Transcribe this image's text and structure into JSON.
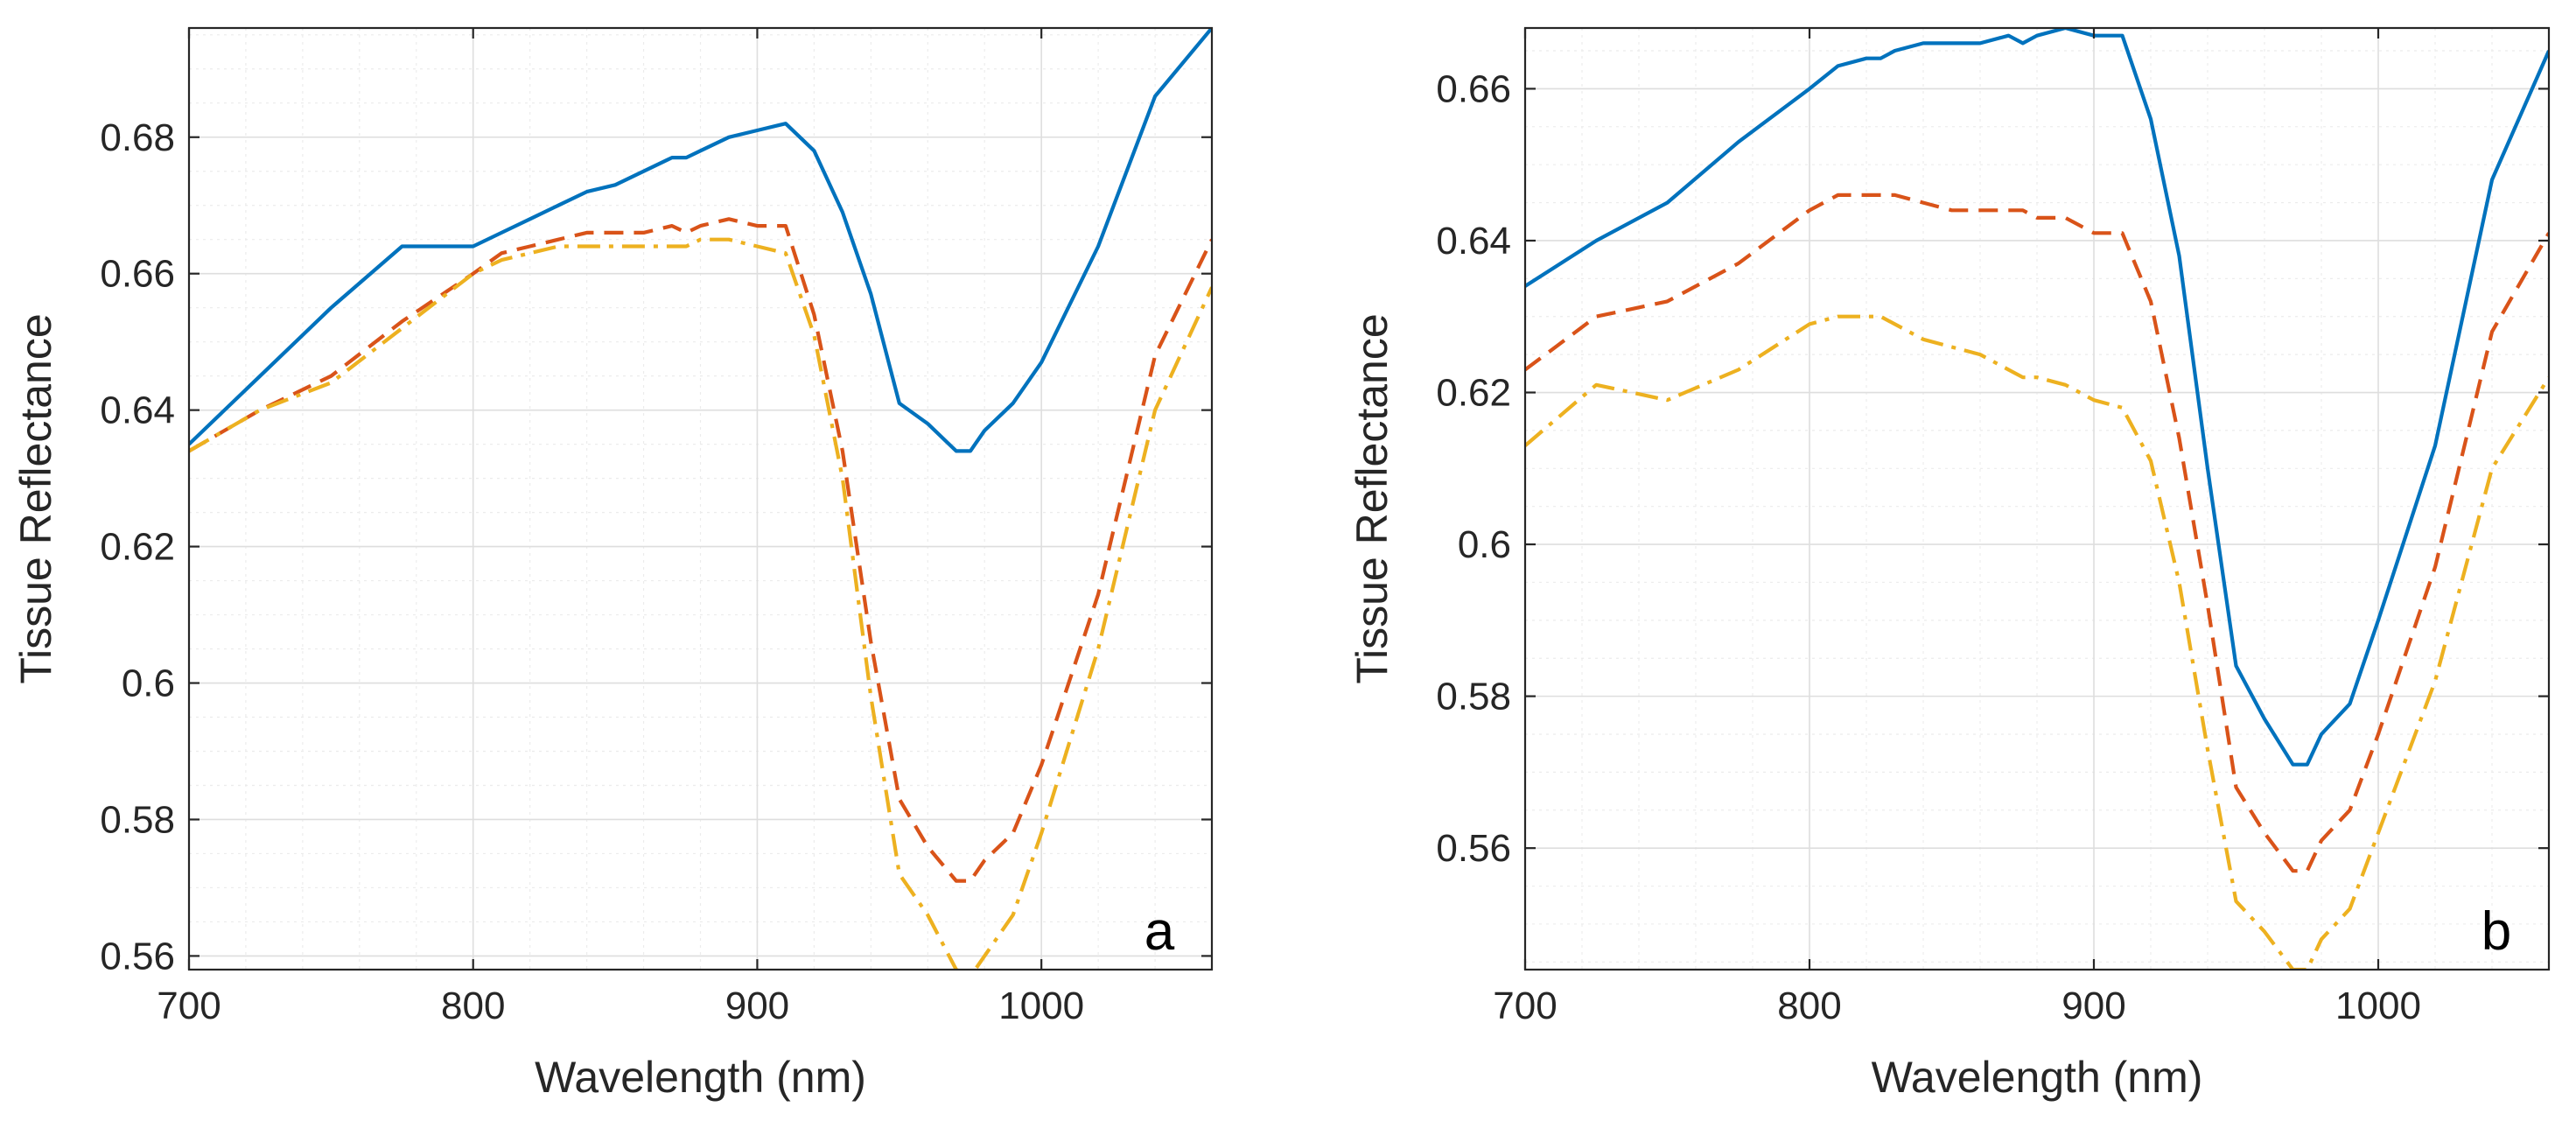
{
  "chart_data": [
    {
      "type": "line",
      "panel_label": "a",
      "xlabel": "Wavelength (nm)",
      "ylabel": "Tissue Reflectance",
      "xlim": [
        700,
        1060
      ],
      "ylim": [
        0.558,
        0.696
      ],
      "xticks": [
        700,
        800,
        900,
        1000
      ],
      "xtick_labels": [
        "700",
        "800",
        "900",
        "1000"
      ],
      "yticks": [
        0.56,
        0.58,
        0.6,
        0.62,
        0.64,
        0.66,
        0.68
      ],
      "ytick_labels": [
        "0.56",
        "0.58",
        "0.6",
        "0.62",
        "0.64",
        "0.66",
        "0.68"
      ],
      "grid": true,
      "x": [
        700,
        725,
        750,
        775,
        800,
        810,
        820,
        830,
        840,
        850,
        860,
        870,
        875,
        880,
        890,
        900,
        910,
        920,
        930,
        940,
        950,
        960,
        970,
        975,
        980,
        990,
        1000,
        1020,
        1040,
        1060
      ],
      "series": [
        {
          "name": "series-1",
          "style": "solid",
          "color": "#0072bd",
          "values": [
            0.635,
            0.645,
            0.655,
            0.664,
            0.664,
            0.666,
            0.668,
            0.67,
            0.672,
            0.673,
            0.675,
            0.677,
            0.677,
            0.678,
            0.68,
            0.681,
            0.682,
            0.678,
            0.669,
            0.657,
            0.641,
            0.638,
            0.634,
            0.634,
            0.637,
            0.641,
            0.647,
            0.664,
            0.686,
            0.696
          ]
        },
        {
          "name": "series-2",
          "style": "dashed",
          "color": "#d95319",
          "values": [
            0.634,
            0.64,
            0.645,
            0.653,
            0.66,
            0.663,
            0.664,
            0.665,
            0.666,
            0.666,
            0.666,
            0.667,
            0.666,
            0.667,
            0.668,
            0.667,
            0.667,
            0.654,
            0.634,
            0.606,
            0.583,
            0.576,
            0.571,
            0.571,
            0.574,
            0.578,
            0.588,
            0.613,
            0.648,
            0.665
          ]
        },
        {
          "name": "series-3",
          "style": "dashdot",
          "color": "#edb120",
          "values": [
            0.634,
            0.64,
            0.644,
            0.652,
            0.66,
            0.662,
            0.663,
            0.664,
            0.664,
            0.664,
            0.664,
            0.664,
            0.664,
            0.665,
            0.665,
            0.664,
            0.663,
            0.651,
            0.63,
            0.598,
            0.572,
            0.566,
            0.558,
            0.557,
            0.56,
            0.566,
            0.578,
            0.605,
            0.64,
            0.658
          ]
        }
      ]
    },
    {
      "type": "line",
      "panel_label": "b",
      "xlabel": "Wavelength (nm)",
      "ylabel": "Tissue Reflectance",
      "xlim": [
        700,
        1060
      ],
      "ylim": [
        0.544,
        0.668
      ],
      "xticks": [
        700,
        800,
        900,
        1000
      ],
      "xtick_labels": [
        "700",
        "800",
        "900",
        "1000"
      ],
      "yticks": [
        0.56,
        0.58,
        0.6,
        0.62,
        0.64,
        0.66
      ],
      "ytick_labels": [
        "0.56",
        "0.58",
        "0.6",
        "0.62",
        "0.64",
        "0.66"
      ],
      "grid": true,
      "x": [
        700,
        725,
        750,
        775,
        800,
        810,
        820,
        825,
        830,
        840,
        850,
        860,
        870,
        875,
        880,
        890,
        900,
        910,
        920,
        930,
        940,
        950,
        960,
        970,
        975,
        980,
        990,
        1000,
        1020,
        1040,
        1060
      ],
      "series": [
        {
          "name": "series-1",
          "style": "solid",
          "color": "#0072bd",
          "values": [
            0.634,
            0.64,
            0.645,
            0.653,
            0.66,
            0.663,
            0.664,
            0.664,
            0.665,
            0.666,
            0.666,
            0.666,
            0.667,
            0.666,
            0.667,
            0.668,
            0.667,
            0.667,
            0.656,
            0.638,
            0.61,
            0.584,
            0.577,
            0.571,
            0.571,
            0.575,
            0.579,
            0.59,
            0.613,
            0.648,
            0.665
          ]
        },
        {
          "name": "series-2",
          "style": "dashed",
          "color": "#d95319",
          "values": [
            0.623,
            0.63,
            0.632,
            0.637,
            0.644,
            0.646,
            0.646,
            0.646,
            0.646,
            0.645,
            0.644,
            0.644,
            0.644,
            0.644,
            0.643,
            0.643,
            0.641,
            0.641,
            0.632,
            0.614,
            0.592,
            0.568,
            0.562,
            0.557,
            0.557,
            0.561,
            0.565,
            0.575,
            0.597,
            0.628,
            0.641
          ]
        },
        {
          "name": "series-3",
          "style": "dashdot",
          "color": "#edb120",
          "values": [
            0.613,
            0.621,
            0.619,
            0.623,
            0.629,
            0.63,
            0.63,
            0.63,
            0.629,
            0.627,
            0.626,
            0.625,
            0.623,
            0.622,
            0.622,
            0.621,
            0.619,
            0.618,
            0.611,
            0.595,
            0.573,
            0.553,
            0.549,
            0.544,
            0.544,
            0.548,
            0.552,
            0.562,
            0.582,
            0.61,
            0.622
          ]
        }
      ]
    }
  ]
}
